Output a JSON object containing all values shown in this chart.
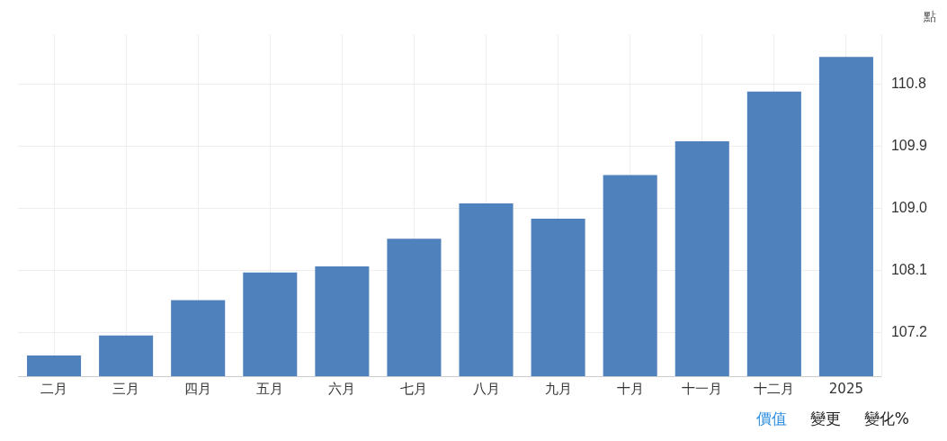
{
  "chart_data": {
    "type": "bar",
    "ylabel": "點",
    "categories": [
      "二月",
      "三月",
      "四月",
      "五月",
      "六月",
      "七月",
      "八月",
      "九月",
      "十月",
      "十一月",
      "十二月",
      "2025"
    ],
    "values": [
      106.87,
      107.16,
      107.67,
      108.07,
      108.16,
      108.56,
      109.07,
      108.85,
      109.48,
      109.97,
      110.69,
      111.19
    ],
    "color": "#4f81bd",
    "ylim": [
      106.57,
      111.52
    ],
    "yticks": [
      107.2,
      108.1,
      {
        "value": 109,
        "label": "109.0"
      },
      109.9,
      110.8
    ],
    "grid": true,
    "annotations": [
      "價值",
      "變更",
      "變化%"
    ]
  }
}
